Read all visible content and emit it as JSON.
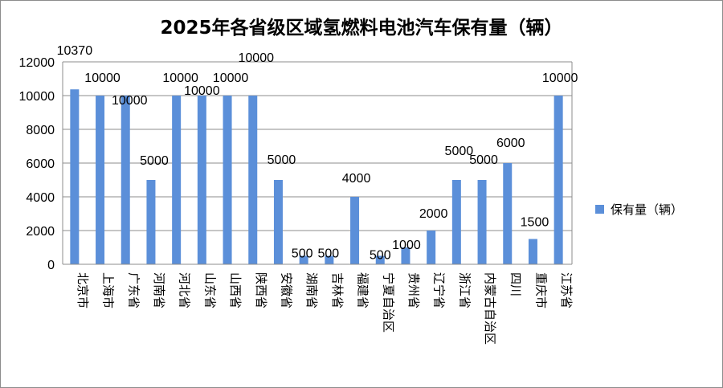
{
  "chart_data": {
    "type": "bar",
    "title": "2025年各省级区域氢燃料电池汽车保有量（辆）",
    "categories": [
      "北京市",
      "上海市",
      "广东省",
      "河南省",
      "河北省",
      "山东省",
      "山西省",
      "陕西省",
      "安徽省",
      "湖南省",
      "吉林省",
      "福建省",
      "宁夏自治区",
      "贵州省",
      "辽宁省",
      "浙江省",
      "内蒙古自治区",
      "四川",
      "重庆市",
      "江苏省"
    ],
    "series": [
      {
        "name": "保有量（辆）",
        "values": [
          10370,
          10000,
          10000,
          5000,
          10000,
          10000,
          10000,
          10000,
          5000,
          500,
          500,
          4000,
          500,
          1000,
          2000,
          5000,
          5000,
          6000,
          1500,
          10000
        ]
      }
    ],
    "data_labels": [
      "10370",
      "10000",
      "10000",
      "5000",
      "10000",
      "10000",
      "10000",
      "10000",
      "5000",
      "500",
      "500",
      "4000",
      "500",
      "1000",
      "2000",
      "5000",
      "5000",
      "6000",
      "1500",
      "10000"
    ],
    "ylim": [
      0,
      12000
    ],
    "yticks": [
      "0",
      "2000",
      "4000",
      "6000",
      "8000",
      "10000",
      "12000"
    ],
    "grid": true,
    "legend_position": "right",
    "colors": {
      "bar": "#5b8fd9",
      "grid": "#8c8c8c",
      "axis": "#8c8c8c"
    }
  }
}
